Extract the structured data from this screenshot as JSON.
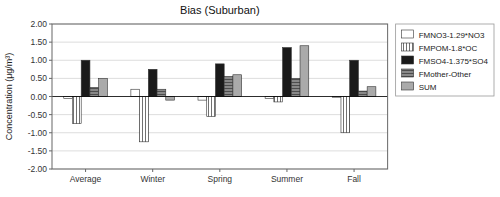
{
  "chart_data": {
    "type": "bar",
    "title": "Bias (Suburban)",
    "y_label": "Concentration (μg/m³)",
    "categories": [
      "Average",
      "Winter",
      "Spring",
      "Summer",
      "Fall"
    ],
    "series": [
      {
        "name": "FMNO3-1.29*NO3",
        "color": "#ffffff",
        "values": [
          -0.05,
          0.2,
          -0.1,
          -0.05,
          -0.02
        ]
      },
      {
        "name": "FMPOM-1.8*OC",
        "color": "#ffffff",
        "values": [
          -0.75,
          -1.25,
          -0.55,
          -0.15,
          -1.0
        ]
      },
      {
        "name": "FMSO4-1.375*SO4",
        "color": "#1a1a1a",
        "values": [
          1.0,
          0.75,
          0.9,
          1.35,
          1.0
        ]
      },
      {
        "name": "FMother-Other",
        "color": "#888888",
        "values": [
          0.25,
          0.2,
          0.55,
          0.5,
          0.15
        ]
      },
      {
        "name": "SUM",
        "color": "#aaaaaa",
        "values": [
          0.5,
          -0.1,
          0.6,
          1.4,
          0.27
        ]
      }
    ],
    "ylim": [
      -2.0,
      2.0
    ],
    "yticks": [
      {
        "value": -2.0,
        "label": "-2.00"
      },
      {
        "value": -1.5,
        "label": "-1.50"
      },
      {
        "value": -1.0,
        "label": "-1.00"
      },
      {
        "value": -0.5,
        "label": "-0.50"
      },
      {
        "value": 0.0,
        "label": "0.00"
      },
      {
        "value": 0.5,
        "label": "0.50"
      },
      {
        "value": 1.0,
        "label": "1.00"
      },
      {
        "value": 1.5,
        "label": "1.50"
      },
      {
        "value": 2.0,
        "label": "2.00"
      }
    ],
    "grid": true,
    "legend": "right"
  }
}
